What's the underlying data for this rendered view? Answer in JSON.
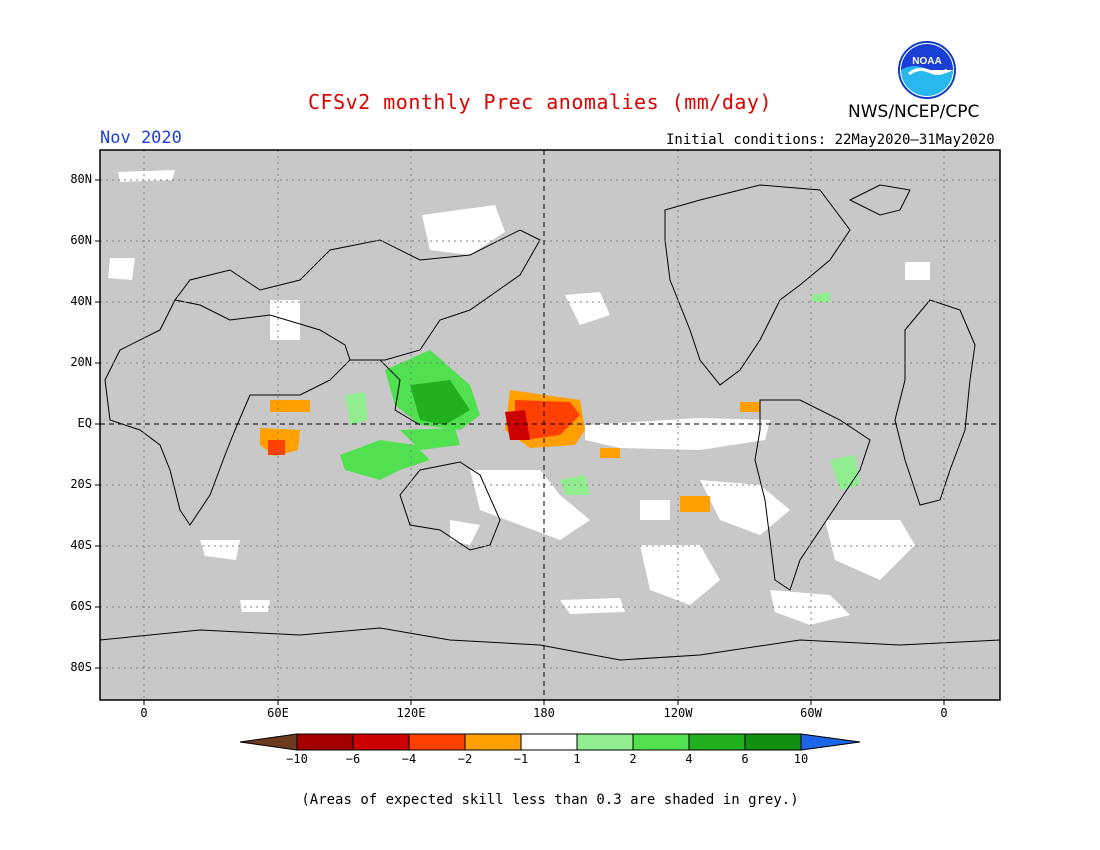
{
  "header": {
    "title": "CFSv2 monthly Prec anomalies (mm/day)",
    "agency": "NWS/NCEP/CPC",
    "month": "Nov 2020",
    "init_conditions": "Initial conditions: 22May2020–31May2020"
  },
  "logo": {
    "text": "NOAA",
    "icon": "noaa-logo"
  },
  "map": {
    "background_color": "#c8c8c8",
    "lat_labels": [
      "80N",
      "60N",
      "40N",
      "20N",
      "EQ",
      "20S",
      "40S",
      "60S",
      "80S"
    ],
    "lon_labels": [
      "0",
      "60E",
      "120E",
      "180",
      "120W",
      "60W",
      "0"
    ]
  },
  "colorbar": {
    "labels": [
      "−10",
      "−6",
      "−4",
      "−2",
      "−1",
      "1",
      "2",
      "4",
      "6",
      "10"
    ],
    "colors": [
      "#6b3a1f",
      "#a50000",
      "#cc0000",
      "#ff4000",
      "#ffa000",
      "#ffffff",
      "#90ee90",
      "#50e050",
      "#20b020",
      "#109010",
      "#1e64e6"
    ]
  },
  "footnote": "(Areas of expected skill less than 0.3 are shaded in grey.)"
}
